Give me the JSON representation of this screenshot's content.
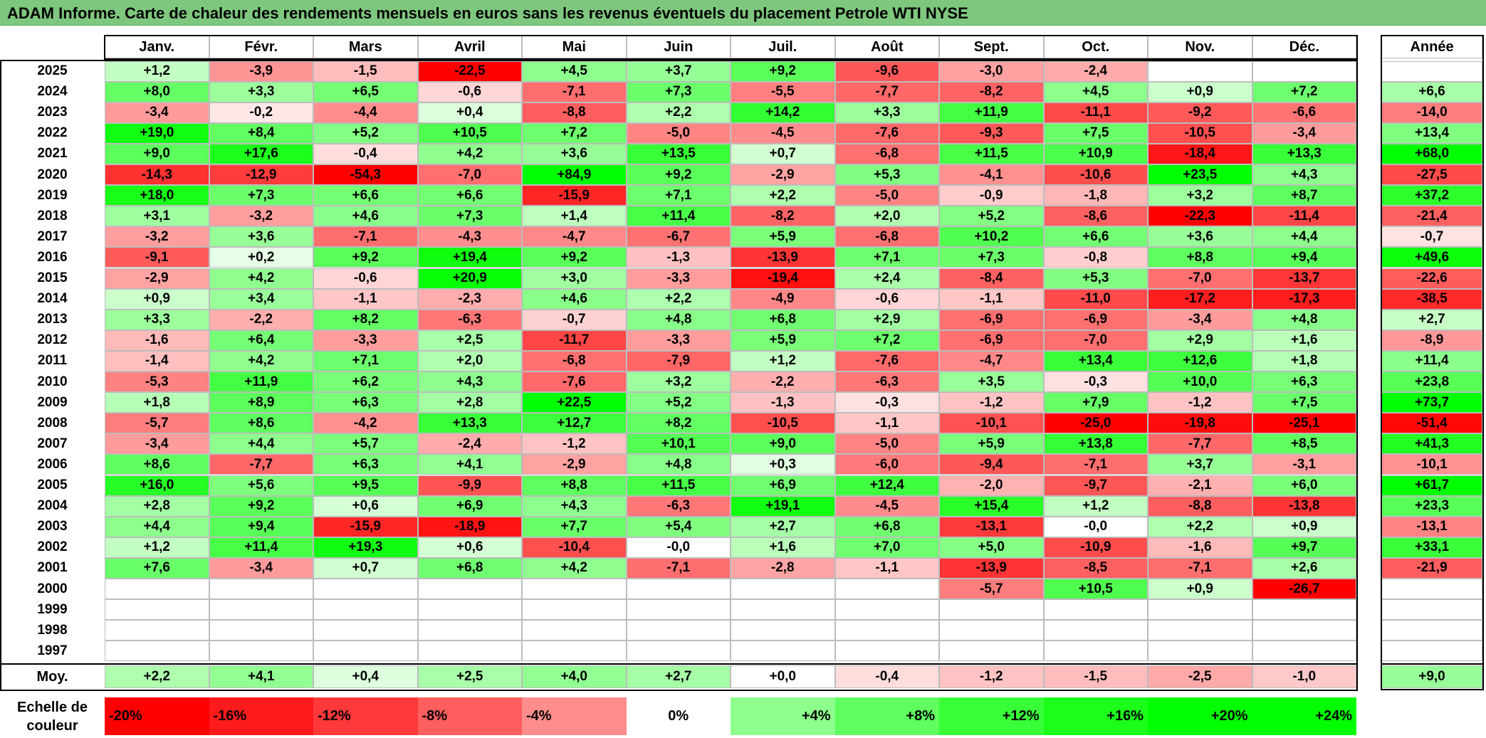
{
  "title": "ADAM Informe. Carte de chaleur des rendements mensuels en euros sans les revenus éventuels du placement Petrole WTI NYSE",
  "year_header": "Année",
  "average_label": "Moy.",
  "scale_label_line1": "Echelle de",
  "scale_label_line2": "couleur",
  "colors": {
    "negative": "#ff0000",
    "neutral": "#ffffff",
    "positive": "#00ff00",
    "title_bg": "#7ec77e"
  },
  "chart_data": {
    "type": "heatmap",
    "months": [
      "Janv.",
      "Févr.",
      "Mars",
      "Avril",
      "Mai",
      "Juin",
      "Juil.",
      "Août",
      "Sept.",
      "Oct.",
      "Nov.",
      "Déc."
    ],
    "rows": [
      {
        "year": "2025",
        "values": [
          "+1,2",
          "-3,9",
          "-1,5",
          "-22,5",
          "+4,5",
          "+3,7",
          "+9,2",
          "-9,6",
          "-3,0",
          "-2,4",
          "",
          ""
        ],
        "annual": ""
      },
      {
        "year": "2024",
        "values": [
          "+8,0",
          "+3,3",
          "+6,5",
          "-0,6",
          "-7,1",
          "+7,3",
          "-5,5",
          "-7,7",
          "-8,2",
          "+4,5",
          "+0,9",
          "+7,2"
        ],
        "annual": "+6,6"
      },
      {
        "year": "2023",
        "values": [
          "-3,4",
          "-0,2",
          "-4,4",
          "+0,4",
          "-8,8",
          "+2,2",
          "+14,2",
          "+3,3",
          "+11,9",
          "-11,1",
          "-9,2",
          "-6,6"
        ],
        "annual": "-14,0"
      },
      {
        "year": "2022",
        "values": [
          "+19,0",
          "+8,4",
          "+5,2",
          "+10,5",
          "+7,2",
          "-5,0",
          "-4,5",
          "-7,6",
          "-9,3",
          "+7,5",
          "-10,5",
          "-3,4"
        ],
        "annual": "+13,4"
      },
      {
        "year": "2021",
        "values": [
          "+9,0",
          "+17,6",
          "-0,4",
          "+4,2",
          "+3,6",
          "+13,5",
          "+0,7",
          "-6,8",
          "+11,5",
          "+10,9",
          "-18,4",
          "+13,3"
        ],
        "annual": "+68,0"
      },
      {
        "year": "2020",
        "values": [
          "-14,3",
          "-12,9",
          "-54,3",
          "-7,0",
          "+84,9",
          "+9,2",
          "-2,9",
          "+5,3",
          "-4,1",
          "-10,6",
          "+23,5",
          "+4,3"
        ],
        "annual": "-27,5"
      },
      {
        "year": "2019",
        "values": [
          "+18,0",
          "+7,3",
          "+6,6",
          "+6,6",
          "-15,9",
          "+7,1",
          "+2,2",
          "-5,0",
          "-0,9",
          "-1,8",
          "+3,2",
          "+8,7"
        ],
        "annual": "+37,2"
      },
      {
        "year": "2018",
        "values": [
          "+3,1",
          "-3,2",
          "+4,6",
          "+7,3",
          "+1,4",
          "+11,4",
          "-8,2",
          "+2,0",
          "+5,2",
          "-8,6",
          "-22,3",
          "-11,4"
        ],
        "annual": "-21,4"
      },
      {
        "year": "2017",
        "values": [
          "-3,2",
          "+3,6",
          "-7,1",
          "-4,3",
          "-4,7",
          "-6,7",
          "+5,9",
          "-6,8",
          "+10,2",
          "+6,6",
          "+3,6",
          "+4,4"
        ],
        "annual": "-0,7"
      },
      {
        "year": "2016",
        "values": [
          "-9,1",
          "+0,2",
          "+9,2",
          "+19,4",
          "+9,2",
          "-1,3",
          "-13,9",
          "+7,1",
          "+7,3",
          "-0,8",
          "+8,8",
          "+9,4"
        ],
        "annual": "+49,6"
      },
      {
        "year": "2015",
        "values": [
          "-2,9",
          "+4,2",
          "-0,6",
          "+20,9",
          "+3,0",
          "-3,3",
          "-19,4",
          "+2,4",
          "-8,4",
          "+5,3",
          "-7,0",
          "-13,7"
        ],
        "annual": "-22,6"
      },
      {
        "year": "2014",
        "values": [
          "+0,9",
          "+3,4",
          "-1,1",
          "-2,3",
          "+4,6",
          "+2,2",
          "-4,9",
          "-0,6",
          "-1,1",
          "-11,0",
          "-17,2",
          "-17,3"
        ],
        "annual": "-38,5"
      },
      {
        "year": "2013",
        "values": [
          "+3,3",
          "-2,2",
          "+8,2",
          "-6,3",
          "-0,7",
          "+4,8",
          "+6,8",
          "+2,9",
          "-6,9",
          "-6,9",
          "-3,4",
          "+4,8"
        ],
        "annual": "+2,7"
      },
      {
        "year": "2012",
        "values": [
          "-1,6",
          "+6,4",
          "-3,3",
          "+2,5",
          "-11,7",
          "-3,3",
          "+5,9",
          "+7,2",
          "-6,9",
          "-7,0",
          "+2,9",
          "+1,6"
        ],
        "annual": "-8,9"
      },
      {
        "year": "2011",
        "values": [
          "-1,4",
          "+4,2",
          "+7,1",
          "+2,0",
          "-6,8",
          "-7,9",
          "+1,2",
          "-7,6",
          "-4,7",
          "+13,4",
          "+12,6",
          "+1,8"
        ],
        "annual": "+11,4"
      },
      {
        "year": "2010",
        "values": [
          "-5,3",
          "+11,9",
          "+6,2",
          "+4,3",
          "-7,6",
          "+3,2",
          "-2,2",
          "-6,3",
          "+3,5",
          "-0,3",
          "+10,0",
          "+6,3"
        ],
        "annual": "+23,8"
      },
      {
        "year": "2009",
        "values": [
          "+1,8",
          "+8,9",
          "+6,3",
          "+2,8",
          "+22,5",
          "+5,2",
          "-1,3",
          "-0,3",
          "-1,2",
          "+7,9",
          "-1,2",
          "+7,5"
        ],
        "annual": "+73,7"
      },
      {
        "year": "2008",
        "values": [
          "-5,7",
          "+8,6",
          "-4,2",
          "+13,3",
          "+12,7",
          "+8,2",
          "-10,5",
          "-1,1",
          "-10,1",
          "-25,0",
          "-19,8",
          "-25,1"
        ],
        "annual": "-51,4"
      },
      {
        "year": "2007",
        "values": [
          "-3,4",
          "+4,4",
          "+5,7",
          "-2,4",
          "-1,2",
          "+10,1",
          "+9,0",
          "-5,0",
          "+5,9",
          "+13,8",
          "-7,7",
          "+8,5"
        ],
        "annual": "+41,3"
      },
      {
        "year": "2006",
        "values": [
          "+8,6",
          "-7,7",
          "+6,3",
          "+4,1",
          "-2,9",
          "+4,8",
          "+0,3",
          "-6,0",
          "-9,4",
          "-7,1",
          "+3,7",
          "-3,1"
        ],
        "annual": "-10,1"
      },
      {
        "year": "2005",
        "values": [
          "+16,0",
          "+5,6",
          "+9,5",
          "-9,9",
          "+8,8",
          "+11,5",
          "+6,9",
          "+12,4",
          "-2,0",
          "-9,7",
          "-2,1",
          "+6,0"
        ],
        "annual": "+61,7"
      },
      {
        "year": "2004",
        "values": [
          "+2,8",
          "+9,2",
          "+0,6",
          "+6,9",
          "+4,3",
          "-6,3",
          "+19,1",
          "-4,5",
          "+15,4",
          "+1,2",
          "-8,8",
          "-13,8"
        ],
        "annual": "+23,3"
      },
      {
        "year": "2003",
        "values": [
          "+4,4",
          "+9,4",
          "-15,9",
          "-18,9",
          "+7,7",
          "+5,4",
          "+2,7",
          "+6,8",
          "-13,1",
          "-0,0",
          "+2,2",
          "+0,9"
        ],
        "annual": "-13,1"
      },
      {
        "year": "2002",
        "values": [
          "+1,2",
          "+11,4",
          "+19,3",
          "+0,6",
          "-10,4",
          "-0,0",
          "+1,6",
          "+7,0",
          "+5,0",
          "-10,9",
          "-1,6",
          "+9,7"
        ],
        "annual": "+33,1"
      },
      {
        "year": "2001",
        "values": [
          "+7,6",
          "-3,4",
          "+0,7",
          "+6,8",
          "+4,2",
          "-7,1",
          "-2,8",
          "-1,1",
          "-13,9",
          "-8,5",
          "-7,1",
          "+2,6"
        ],
        "annual": "-21,9"
      },
      {
        "year": "2000",
        "values": [
          "",
          "",
          "",
          "",
          "",
          "",
          "",
          "",
          "-5,7",
          "+10,5",
          "+0,9",
          "-26,7"
        ],
        "annual": ""
      },
      {
        "year": "1999",
        "values": [
          "",
          "",
          "",
          "",
          "",
          "",
          "",
          "",
          "",
          "",
          "",
          ""
        ],
        "annual": ""
      },
      {
        "year": "1998",
        "values": [
          "",
          "",
          "",
          "",
          "",
          "",
          "",
          "",
          "",
          "",
          "",
          ""
        ],
        "annual": ""
      },
      {
        "year": "1997",
        "values": [
          "",
          "",
          "",
          "",
          "",
          "",
          "",
          "",
          "",
          "",
          "",
          ""
        ],
        "annual": ""
      }
    ],
    "averages": [
      "+2,2",
      "+4,1",
      "+0,4",
      "+2,5",
      "+4,0",
      "+2,7",
      "+0,0",
      "-0,4",
      "-1,2",
      "-1,5",
      "-2,5",
      "-1,0"
    ],
    "average_annual": "+9,0",
    "scale": [
      "-20%",
      "-16%",
      "-12%",
      "-8%",
      "-4%",
      "0%",
      "+4%",
      "+8%",
      "+12%",
      "+16%",
      "+20%",
      "+24%"
    ]
  }
}
